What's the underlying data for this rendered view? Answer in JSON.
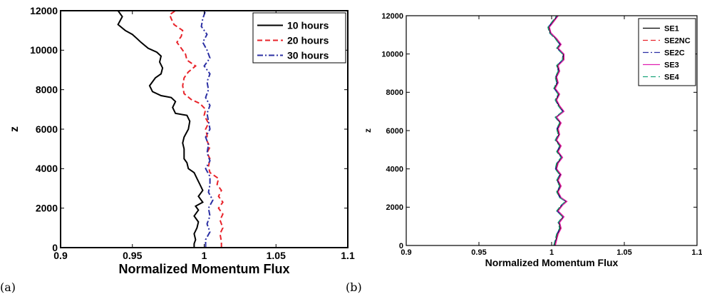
{
  "panels": [
    {
      "caption": "(a)",
      "chart_data": {
        "type": "line",
        "xlabel": "Normalized Momentum Flux",
        "ylabel": "z",
        "xlim": [
          0.9,
          1.1
        ],
        "ylim": [
          0,
          12000
        ],
        "xticks": [
          "0.9",
          "0.95",
          "1",
          "1.05",
          "1.1"
        ],
        "yticks": [
          "0",
          "2000",
          "4000",
          "6000",
          "8000",
          "10000",
          "12000"
        ],
        "grid": false,
        "legend_position": "top-right",
        "series": [
          {
            "name": "10 hours",
            "color": "#000000",
            "dash": "solid",
            "points": [
              [
                0.993,
                0
              ],
              [
                0.993,
                200
              ],
              [
                0.994,
                400
              ],
              [
                0.993,
                700
              ],
              [
                0.995,
                1000
              ],
              [
                0.996,
                1300
              ],
              [
                0.993,
                1600
              ],
              [
                0.996,
                1900
              ],
              [
                0.994,
                2100
              ],
              [
                0.999,
                2300
              ],
              [
                0.996,
                2600
              ],
              [
                0.999,
                2900
              ],
              [
                0.997,
                3200
              ],
              [
                0.995,
                3500
              ],
              [
                0.993,
                3800
              ],
              [
                0.989,
                4000
              ],
              [
                0.988,
                4300
              ],
              [
                0.986,
                4500
              ],
              [
                0.986,
                4800
              ],
              [
                0.986,
                5000
              ],
              [
                0.985,
                5300
              ],
              [
                0.986,
                5600
              ],
              [
                0.989,
                6000
              ],
              [
                0.99,
                6400
              ],
              [
                0.988,
                6700
              ],
              [
                0.98,
                6800
              ],
              [
                0.978,
                7100
              ],
              [
                0.98,
                7400
              ],
              [
                0.977,
                7600
              ],
              [
                0.97,
                7700
              ],
              [
                0.964,
                7900
              ],
              [
                0.962,
                8200
              ],
              [
                0.966,
                8600
              ],
              [
                0.97,
                8800
              ],
              [
                0.971,
                9100
              ],
              [
                0.969,
                9400
              ],
              [
                0.97,
                9700
              ],
              [
                0.967,
                9900
              ],
              [
                0.961,
                10100
              ],
              [
                0.956,
                10400
              ],
              [
                0.953,
                10600
              ],
              [
                0.95,
                10800
              ],
              [
                0.945,
                11000
              ],
              [
                0.94,
                11300
              ],
              [
                0.943,
                11700
              ],
              [
                0.94,
                12000
              ]
            ]
          },
          {
            "name": "20 hours",
            "color": "#e8232a",
            "dash": "dashed",
            "points": [
              [
                1.012,
                0
              ],
              [
                1.012,
                300
              ],
              [
                1.011,
                700
              ],
              [
                1.013,
                1000
              ],
              [
                1.011,
                1400
              ],
              [
                1.013,
                1700
              ],
              [
                1.01,
                2000
              ],
              [
                1.013,
                2300
              ],
              [
                1.01,
                2600
              ],
              [
                1.012,
                2900
              ],
              [
                1.009,
                3200
              ],
              [
                1.01,
                3500
              ],
              [
                1.004,
                3800
              ],
              [
                1.003,
                4100
              ],
              [
                1.004,
                4500
              ],
              [
                1.002,
                4800
              ],
              [
                1.004,
                5100
              ],
              [
                1.002,
                5400
              ],
              [
                1.002,
                5700
              ],
              [
                1.001,
                6000
              ],
              [
                1.003,
                6300
              ],
              [
                1.0,
                6700
              ],
              [
                1.001,
                7000
              ],
              [
                0.997,
                7300
              ],
              [
                0.991,
                7500
              ],
              [
                0.986,
                7800
              ],
              [
                0.985,
                8200
              ],
              [
                0.986,
                8600
              ],
              [
                0.989,
                8900
              ],
              [
                0.994,
                9200
              ],
              [
                0.988,
                9500
              ],
              [
                0.987,
                9800
              ],
              [
                0.984,
                10100
              ],
              [
                0.981,
                10400
              ],
              [
                0.984,
                10700
              ],
              [
                0.985,
                11000
              ],
              [
                0.979,
                11300
              ],
              [
                0.977,
                11600
              ],
              [
                0.976,
                11800
              ],
              [
                0.98,
                12000
              ]
            ]
          },
          {
            "name": "30 hours",
            "color": "#2b2fa3",
            "dash": "dashdot",
            "points": [
              [
                1.001,
                0
              ],
              [
                1.001,
                400
              ],
              [
                1.004,
                800
              ],
              [
                1.002,
                1200
              ],
              [
                1.004,
                1600
              ],
              [
                1.003,
                2000
              ],
              [
                1.006,
                2400
              ],
              [
                1.003,
                2800
              ],
              [
                1.004,
                3200
              ],
              [
                1.004,
                3600
              ],
              [
                1.001,
                4000
              ],
              [
                1.004,
                4400
              ],
              [
                1.002,
                4800
              ],
              [
                1.003,
                5200
              ],
              [
                1.001,
                5600
              ],
              [
                1.004,
                6000
              ],
              [
                1.003,
                6400
              ],
              [
                1.002,
                6800
              ],
              [
                1.004,
                7200
              ],
              [
                1.001,
                7600
              ],
              [
                1.003,
                8000
              ],
              [
                1.002,
                8400
              ],
              [
                1.004,
                8800
              ],
              [
                1.0,
                9200
              ],
              [
                1.004,
                9600
              ],
              [
                1.002,
                10000
              ],
              [
                0.999,
                10400
              ],
              [
                1.002,
                10800
              ],
              [
                0.998,
                11200
              ],
              [
                0.999,
                11600
              ],
              [
                1.001,
                12000
              ]
            ]
          }
        ]
      }
    },
    {
      "caption": "(b)",
      "chart_data": {
        "type": "line",
        "xlabel": "Normalized Momentum Flux",
        "ylabel": "z",
        "xlim": [
          0.9,
          1.1
        ],
        "ylim": [
          0,
          12000
        ],
        "xticks": [
          "0.9",
          "0.95",
          "1",
          "1.05",
          "1.1"
        ],
        "yticks": [
          "0",
          "2000",
          "4000",
          "6000",
          "8000",
          "10000",
          "12000"
        ],
        "grid": false,
        "legend_position": "top-right",
        "base_profile": [
          [
            1.002,
            0
          ],
          [
            1.003,
            300
          ],
          [
            1.004,
            600
          ],
          [
            1.006,
            900
          ],
          [
            1.005,
            1200
          ],
          [
            1.008,
            1500
          ],
          [
            1.004,
            1800
          ],
          [
            1.007,
            2100
          ],
          [
            1.01,
            2300
          ],
          [
            1.006,
            2500
          ],
          [
            1.004,
            2800
          ],
          [
            1.006,
            3100
          ],
          [
            1.004,
            3400
          ],
          [
            1.006,
            3700
          ],
          [
            1.003,
            4000
          ],
          [
            1.004,
            4300
          ],
          [
            1.007,
            4600
          ],
          [
            1.004,
            4900
          ],
          [
            1.006,
            5200
          ],
          [
            1.003,
            5500
          ],
          [
            1.005,
            5800
          ],
          [
            1.004,
            6100
          ],
          [
            1.006,
            6400
          ],
          [
            1.003,
            6700
          ],
          [
            1.008,
            7000
          ],
          [
            1.005,
            7300
          ],
          [
            1.003,
            7600
          ],
          [
            1.005,
            7900
          ],
          [
            1.002,
            8200
          ],
          [
            1.004,
            8500
          ],
          [
            1.003,
            8800
          ],
          [
            1.005,
            9100
          ],
          [
            1.004,
            9400
          ],
          [
            1.008,
            9700
          ],
          [
            1.008,
            10000
          ],
          [
            1.004,
            10300
          ],
          [
            1.006,
            10500
          ],
          [
            1.003,
            10800
          ],
          [
            0.999,
            11100
          ],
          [
            0.998,
            11400
          ],
          [
            1.001,
            11700
          ],
          [
            1.004,
            12000
          ]
        ],
        "series": [
          {
            "name": "SE1",
            "color": "#000000",
            "dash": "solid",
            "offset": 0.0
          },
          {
            "name": "SE2NC",
            "color": "#e8232a",
            "dash": "dashed",
            "offset": 0.0004
          },
          {
            "name": "SE2C",
            "color": "#2b2fa3",
            "dash": "dashdot",
            "offset": -0.0004
          },
          {
            "name": "SE3",
            "color": "#e020b0",
            "dash": "solid",
            "offset": 0.0006
          },
          {
            "name": "SE4",
            "color": "#1aa37a",
            "dash": "dashed",
            "offset": -0.0006
          }
        ]
      }
    }
  ]
}
